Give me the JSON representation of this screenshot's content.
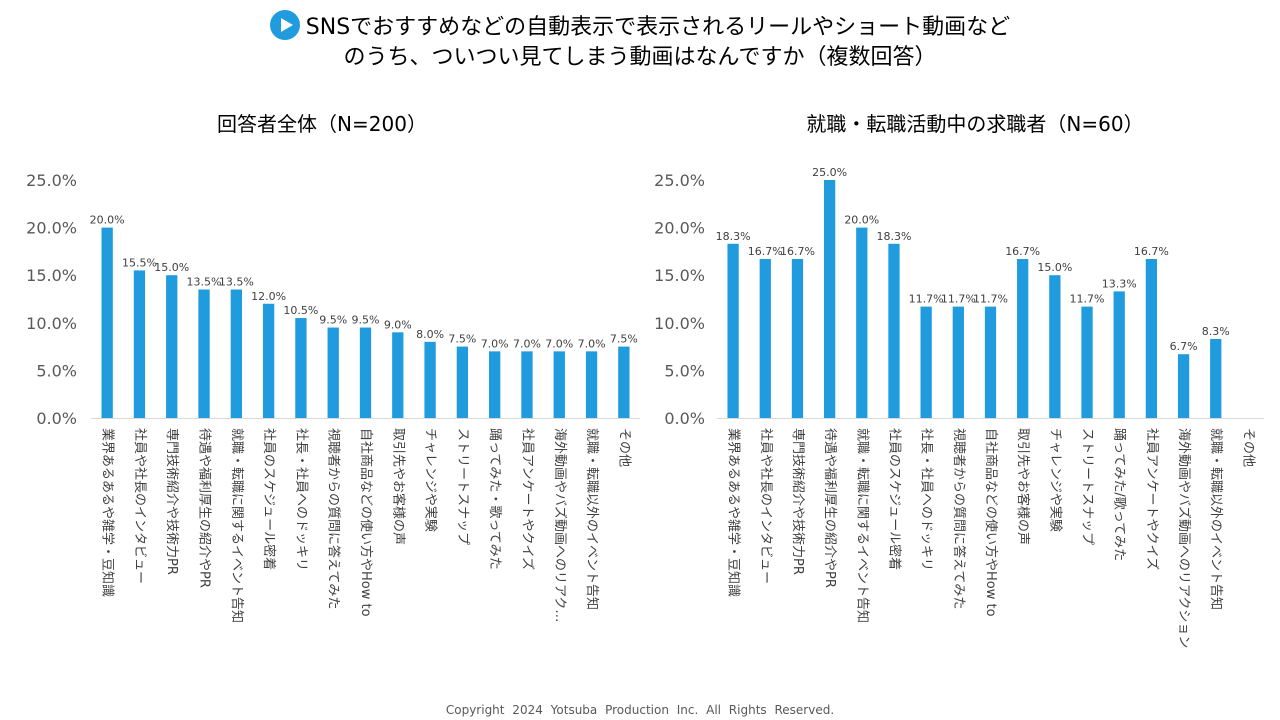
{
  "header": {
    "title_line1": "SNSでおすすめなどの自動表示で表示されるリールやショート動画など",
    "title_line2": "のうち、ついつい見てしまう動画はなんですか（複数回答）",
    "icon": "play-circle-icon",
    "accent_color": "#1f9bde"
  },
  "footer": {
    "copyright": "Copyright 2024  Yotsuba  Production  Inc.   All  Rights  Reserved."
  },
  "chart_data": [
    {
      "type": "bar",
      "title": "回答者全体（N=200）",
      "categories": [
        "業界あるあるや雑学・豆知識",
        "社員や社長のインタビュー",
        "専門技術紹介や技術力PR",
        "待遇や福利厚生の紹介やPR",
        "就職・転職に関するイベント告知",
        "社員のスケジュール密着",
        "社長・社員へのドッキリ",
        "視聴者からの質問に答えてみた",
        "自社商品などの使い方やHow to",
        "取引先やお客様の声",
        "チャレンジや実験",
        "ストリートスナップ",
        "踊ってみた・歌ってみた",
        "社員アンケートやクイズ",
        "海外動画やバズ動画へのリアク…",
        "就職・転職以外のイベント告知",
        "その他"
      ],
      "values": [
        20.0,
        15.5,
        15.0,
        13.5,
        13.5,
        12.0,
        10.5,
        9.5,
        9.5,
        9.0,
        8.0,
        7.5,
        7.0,
        7.0,
        7.0,
        7.0,
        7.5
      ],
      "value_labels": [
        "20.0%",
        "15.5%",
        "15.0%",
        "13.5%",
        "13.5%",
        "12.0%",
        "10.5%",
        "9.5%",
        "9.5%",
        "9.0%",
        "8.0%",
        "7.5%",
        "7.0%",
        "7.0%",
        "7.0%",
        "7.0%",
        "7.5%"
      ],
      "yticks": [
        "0.0%",
        "5.0%",
        "10.0%",
        "15.0%",
        "20.0%",
        "25.0%"
      ],
      "ylim": [
        0,
        25
      ],
      "color": "#1f9bde"
    },
    {
      "type": "bar",
      "title": "就職・転職活動中の求職者（N=60）",
      "categories": [
        "業界あるあるや雑学・豆知識",
        "社員や社長のインタビュー",
        "専門技術紹介や技術力PR",
        "待遇や福利厚生の紹介やPR",
        "就職・転職に関するイベント告知",
        "社員のスケジュール密着",
        "社長・社員へのドッキリ",
        "視聴者からの質問に答えてみた",
        "自社商品などの使い方やHow to",
        "取引先やお客様の声",
        "チャレンジや実験",
        "ストリートスナップ",
        "踊ってみた/歌ってみた",
        "社員アンケートやクイズ",
        "海外動画やバズ動画へのリアクション",
        "就職・転職以外のイベント告知",
        "その他"
      ],
      "values": [
        18.3,
        16.7,
        16.7,
        25.0,
        20.0,
        18.3,
        11.7,
        11.7,
        11.7,
        16.7,
        15.0,
        11.7,
        13.3,
        16.7,
        6.7,
        8.3,
        0
      ],
      "value_labels": [
        "18.3%",
        "16.7%",
        "16.7%",
        "25.0%",
        "20.0%",
        "18.3%",
        "11.7%",
        "11.7%",
        "11.7%",
        "16.7%",
        "15.0%",
        "11.7%",
        "13.3%",
        "16.7%",
        "6.7%",
        "8.3%",
        ""
      ],
      "yticks": [
        "0.0%",
        "5.0%",
        "10.0%",
        "15.0%",
        "20.0%",
        "25.0%"
      ],
      "ylim": [
        0,
        25
      ],
      "color": "#1f9bde"
    }
  ]
}
